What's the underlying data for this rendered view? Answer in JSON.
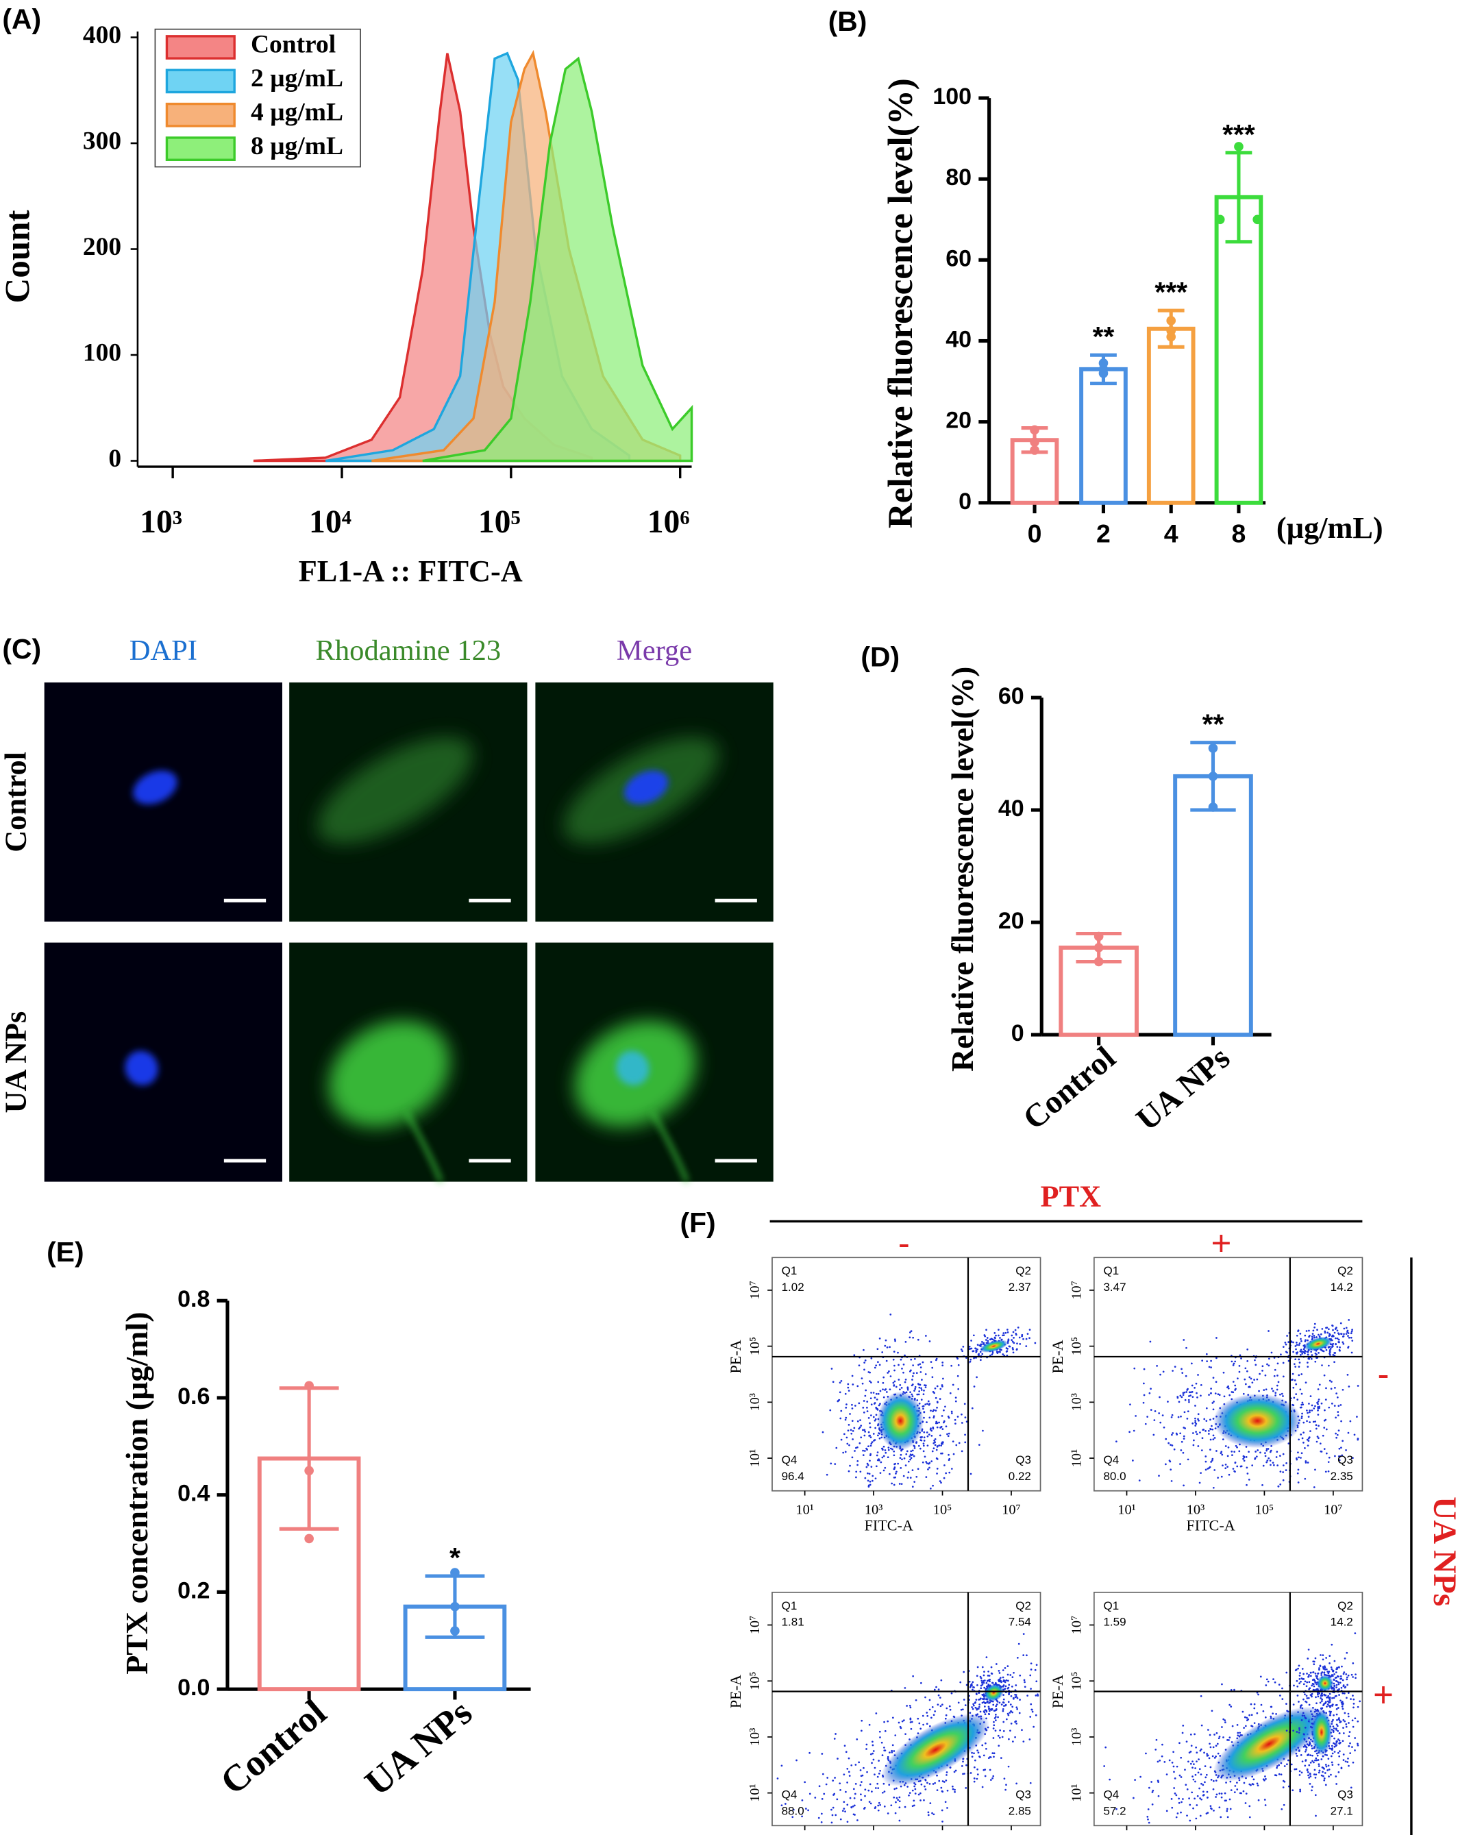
{
  "chart_data": [
    {
      "panel": "(A)",
      "type": "area",
      "xlabel": "FL1-A :: FITC-A",
      "ylabel": "Count",
      "xscale": "log",
      "xlim": [
        620,
        1170000
      ],
      "ylim": [
        0,
        400
      ],
      "xticks": [
        {
          "value": 1000,
          "label": "10³"
        },
        {
          "value": 10000,
          "label": "10⁴"
        },
        {
          "value": 100000,
          "label": "10⁵"
        },
        {
          "value": 1000000,
          "label": "10⁶"
        }
      ],
      "yticks": [
        0,
        100,
        200,
        300,
        400
      ],
      "legend": "upper left",
      "series": [
        {
          "name": "Control",
          "color": "#f48585",
          "edge": "#dc2f2f",
          "x": [
            3000,
            8000,
            15000,
            22000,
            30000,
            38000,
            42000,
            50000,
            60000,
            75000,
            90000,
            120000,
            180000,
            300000
          ],
          "values": [
            0,
            3,
            20,
            60,
            180,
            330,
            385,
            330,
            220,
            120,
            70,
            40,
            15,
            3
          ]
        },
        {
          "name": "2 µg/mL",
          "color": "#6fd3f3",
          "edge": "#1ea6de",
          "x": [
            8000,
            20000,
            35000,
            50000,
            65000,
            80000,
            95000,
            110000,
            140000,
            200000,
            300000,
            500000
          ],
          "values": [
            0,
            10,
            30,
            80,
            250,
            380,
            385,
            360,
            200,
            80,
            30,
            5
          ]
        },
        {
          "name": "4 µg/mL",
          "color": "#f7b17a",
          "edge": "#ef8a2e",
          "x": [
            15000,
            40000,
            60000,
            80000,
            100000,
            120000,
            135000,
            160000,
            220000,
            350000,
            600000,
            1000000
          ],
          "values": [
            0,
            10,
            40,
            150,
            320,
            370,
            385,
            330,
            200,
            80,
            20,
            5
          ]
        },
        {
          "name": "8 µg/mL",
          "color": "#8eef7a",
          "edge": "#3ccb2a",
          "x": [
            30000,
            70000,
            100000,
            130000,
            170000,
            210000,
            250000,
            300000,
            400000,
            600000,
            900000,
            1170000
          ],
          "values": [
            0,
            10,
            40,
            150,
            300,
            370,
            380,
            330,
            220,
            90,
            30,
            50
          ]
        }
      ]
    },
    {
      "panel": "(B)",
      "type": "bar",
      "ylabel": "Relative fluorescence level(%)",
      "xunit": "(µg/mL)",
      "categories": [
        "0",
        "2",
        "4",
        "8"
      ],
      "values": [
        15.5,
        33,
        43,
        75.5
      ],
      "errors": [
        3,
        3.5,
        4.5,
        11
      ],
      "points": [
        [
          13,
          15,
          18
        ],
        [
          32,
          33,
          34.5
        ],
        [
          41,
          42.5,
          45
        ],
        [
          70,
          70,
          88
        ]
      ],
      "significance": [
        null,
        "**",
        "***",
        "***"
      ],
      "colors": [
        "#f08080",
        "#4a90e2",
        "#f5a040",
        "#3cdc3c"
      ],
      "ylim": [
        0,
        100
      ],
      "yticks": [
        0,
        20,
        40,
        60,
        80,
        100
      ]
    },
    {
      "panel": "(D)",
      "type": "bar",
      "ylabel": "Relative fluorescence level(%)",
      "categories": [
        "Control",
        "UA NPs"
      ],
      "values": [
        15.5,
        46
      ],
      "errors": [
        2.5,
        6
      ],
      "points": [
        [
          13,
          15.5,
          17.5
        ],
        [
          40.5,
          46,
          51
        ]
      ],
      "significance": [
        null,
        "**"
      ],
      "colors": [
        "#f08080",
        "#4a90e2"
      ],
      "ylim": [
        0,
        60
      ],
      "yticks": [
        0,
        20,
        40,
        60
      ]
    },
    {
      "panel": "(E)",
      "type": "bar",
      "ylabel": "PTX concentration (µg/ml)",
      "categories": [
        "Control",
        "UA NPs"
      ],
      "values": [
        0.475,
        0.17
      ],
      "errors": [
        0.145,
        0.063
      ],
      "points": [
        [
          0.31,
          0.45,
          0.625
        ],
        [
          0.12,
          0.17,
          0.24
        ]
      ],
      "significance": [
        null,
        "*"
      ],
      "colors": [
        "#f08080",
        "#4a90e2"
      ],
      "ylim": [
        0,
        0.8
      ],
      "yticks": [
        {
          "value": 0,
          "label": "0.0"
        },
        0.2,
        0.4,
        0.6,
        0.8
      ]
    }
  ],
  "panel_c": {
    "panel": "(C)",
    "columns": [
      "DAPI",
      "Rhodamine 123",
      "Merge"
    ],
    "rows": [
      "Control",
      "UA NPs"
    ]
  },
  "panel_f": {
    "panel": "(F)",
    "title": "PTX",
    "ptx_levels": [
      "-",
      "+"
    ],
    "ua_label": "UA NPs",
    "ua_levels": [
      "-",
      "+"
    ],
    "xlabel": "FITC-A",
    "ylabel": "PE-A",
    "ticks": [
      {
        "value": 10,
        "label": "10¹"
      },
      {
        "value": 1000,
        "label": "10³"
      },
      {
        "value": 100000,
        "label": "10⁵"
      },
      {
        "value": 10000000,
        "label": "10⁷"
      }
    ],
    "plots": [
      {
        "quadrants": [
          {
            "name": "Q1",
            "value": "1.02"
          },
          {
            "name": "Q2",
            "value": "2.37"
          },
          {
            "name": "Q3",
            "value": "0.22"
          },
          {
            "name": "Q4",
            "value": "96.4"
          }
        ]
      },
      {
        "quadrants": [
          {
            "name": "Q1",
            "value": "3.47"
          },
          {
            "name": "Q2",
            "value": "14.2"
          },
          {
            "name": "Q3",
            "value": "2.35"
          },
          {
            "name": "Q4",
            "value": "80.0"
          }
        ]
      },
      {
        "quadrants": [
          {
            "name": "Q1",
            "value": "1.81"
          },
          {
            "name": "Q2",
            "value": "7.54"
          },
          {
            "name": "Q3",
            "value": "2.85"
          },
          {
            "name": "Q4",
            "value": "88.0"
          }
        ]
      },
      {
        "quadrants": [
          {
            "name": "Q1",
            "value": "1.59"
          },
          {
            "name": "Q2",
            "value": "14.2"
          },
          {
            "name": "Q3",
            "value": "27.1"
          },
          {
            "name": "Q4",
            "value": "57.2"
          }
        ]
      }
    ]
  }
}
